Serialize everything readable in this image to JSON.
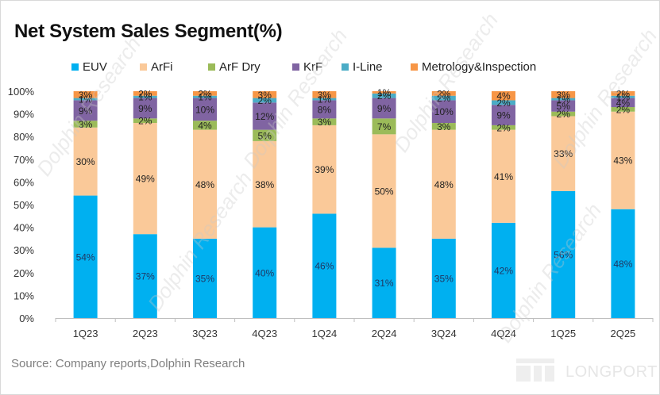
{
  "chart_data": {
    "type": "bar",
    "stacked": true,
    "title": "Net System Sales Segment(%)",
    "xlabel": "",
    "ylabel": "",
    "ylim": [
      0,
      100
    ],
    "yticks": [
      "0%",
      "10%",
      "20%",
      "30%",
      "40%",
      "50%",
      "60%",
      "70%",
      "80%",
      "90%",
      "100%"
    ],
    "grid": false,
    "legend_position": "top",
    "categories": [
      "1Q23",
      "2Q23",
      "3Q23",
      "4Q23",
      "1Q24",
      "2Q24",
      "3Q24",
      "4Q24",
      "1Q25",
      "2Q25"
    ],
    "series": [
      {
        "name": "EUV",
        "color": "#00B0F0",
        "values": [
          54,
          37,
          35,
          40,
          46,
          31,
          35,
          42,
          56,
          48
        ]
      },
      {
        "name": "ArFi",
        "color": "#FAC999",
        "values": [
          30,
          49,
          48,
          38,
          39,
          50,
          48,
          41,
          33,
          43
        ]
      },
      {
        "name": "ArF Dry",
        "color": "#9BBB59",
        "values": [
          3,
          2,
          4,
          5,
          3,
          7,
          3,
          2,
          2,
          2
        ]
      },
      {
        "name": "KrF",
        "color": "#8064A2",
        "values": [
          9,
          9,
          10,
          12,
          8,
          9,
          10,
          9,
          5,
          4
        ]
      },
      {
        "name": "I-Line",
        "color": "#4BACC6",
        "values": [
          1,
          1,
          1,
          2,
          1,
          2,
          2,
          2,
          1,
          1
        ]
      },
      {
        "name": "Metrology&Inspection",
        "color": "#F79646",
        "values": [
          3,
          2,
          2,
          3,
          3,
          1,
          2,
          4,
          3,
          2
        ]
      }
    ]
  },
  "source": "Source: Company reports,Dolphin Research",
  "watermark": {
    "brand": "LONGPORT",
    "diagonal_text": "Dolphin Research"
  }
}
